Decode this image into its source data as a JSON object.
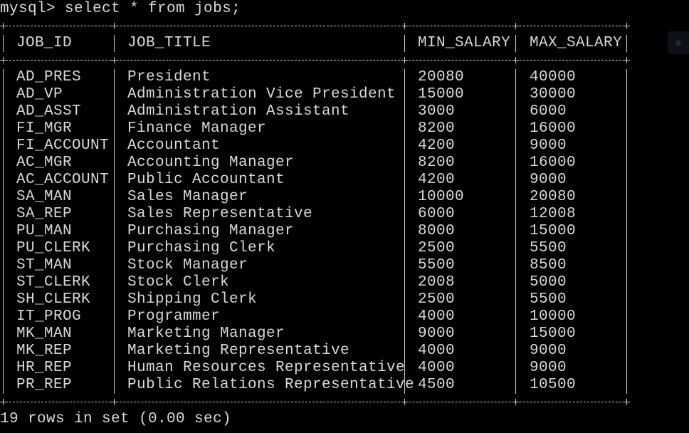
{
  "terminal": {
    "prompt": "mysql>",
    "command": "select * from jobs;",
    "columns": [
      "JOB_ID",
      "JOB_TITLE",
      "MIN_SALARY",
      "MAX_SALARY"
    ],
    "rows": [
      [
        "AD_PRES",
        "President",
        "20080",
        "40000"
      ],
      [
        "AD_VP",
        "Administration Vice President",
        "15000",
        "30000"
      ],
      [
        "AD_ASST",
        "Administration Assistant",
        "3000",
        "6000"
      ],
      [
        "FI_MGR",
        "Finance Manager",
        "8200",
        "16000"
      ],
      [
        "FI_ACCOUNT",
        "Accountant",
        "4200",
        "9000"
      ],
      [
        "AC_MGR",
        "Accounting Manager",
        "8200",
        "16000"
      ],
      [
        "AC_ACCOUNT",
        "Public Accountant",
        "4200",
        "9000"
      ],
      [
        "SA_MAN",
        "Sales Manager",
        "10000",
        "20080"
      ],
      [
        "SA_REP",
        "Sales Representative",
        "6000",
        "12008"
      ],
      [
        "PU_MAN",
        "Purchasing Manager",
        "8000",
        "15000"
      ],
      [
        "PU_CLERK",
        "Purchasing Clerk",
        "2500",
        "5500"
      ],
      [
        "ST_MAN",
        "Stock Manager",
        "5500",
        "8500"
      ],
      [
        "ST_CLERK",
        "Stock Clerk",
        "2008",
        "5000"
      ],
      [
        "SH_CLERK",
        "Shipping Clerk",
        "2500",
        "5500"
      ],
      [
        "IT_PROG",
        "Programmer",
        "4000",
        "10000"
      ],
      [
        "MK_MAN",
        "Marketing Manager",
        "9000",
        "15000"
      ],
      [
        "MK_REP",
        "Marketing Representative",
        "4000",
        "9000"
      ],
      [
        "HR_REP",
        "Human Resources Representative",
        "4000",
        "9000"
      ],
      [
        "PR_REP",
        "Public Relations Representative",
        "4500",
        "10500"
      ]
    ],
    "footer": "19 rows in set (0.00 sec)"
  },
  "colors": {
    "background": "#000000",
    "text": "#d9d9d9"
  }
}
